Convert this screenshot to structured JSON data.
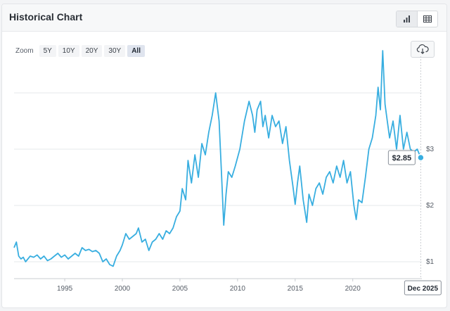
{
  "header": {
    "title": "Historical Chart",
    "toggle": [
      {
        "name": "bar-chart-icon",
        "active": true
      },
      {
        "name": "table-icon",
        "active": false
      }
    ]
  },
  "zoom": {
    "label": "Zoom",
    "options": [
      "5Y",
      "10Y",
      "20Y",
      "30Y",
      "All"
    ],
    "selected": "All"
  },
  "toolbar": {
    "download_icon": "cloud-download-icon"
  },
  "chart_data": {
    "type": "line",
    "title": "",
    "xlabel": "",
    "ylabel": "",
    "x_ticks": [
      1995,
      2000,
      2005,
      2010,
      2015,
      2020
    ],
    "y_ticks": [
      1,
      2,
      3
    ],
    "y_tick_labels": [
      "$1",
      "$2",
      "$3"
    ],
    "xlim": [
      1990.6,
      2026.0
    ],
    "ylim": [
      0.7,
      4.65
    ],
    "grid": true,
    "line_color": "#38aee0",
    "last_point": {
      "x": "Dec 2025",
      "value": 2.85,
      "label": "$2.85"
    },
    "series": [
      {
        "x": [
          1990.6,
          1990.8,
          1991.0,
          1991.2,
          1991.4,
          1991.6,
          1991.8,
          1992.0,
          1992.3,
          1992.6,
          1992.9,
          1993.2,
          1993.5,
          1993.8,
          1994.1,
          1994.4,
          1994.7,
          1995.0,
          1995.3,
          1995.6,
          1995.9,
          1996.2,
          1996.5,
          1996.8,
          1997.1,
          1997.4,
          1997.7,
          1998.0,
          1998.3,
          1998.6,
          1998.9,
          1999.2,
          1999.5,
          1999.8,
          2000.0,
          2000.3,
          2000.6,
          2000.9,
          2001.2,
          2001.4,
          2001.7,
          2002.0,
          2002.3,
          2002.6,
          2002.9,
          2003.2,
          2003.5,
          2003.8,
          2004.1,
          2004.4,
          2004.7,
          2005.0,
          2005.2,
          2005.5,
          2005.7,
          2006.0,
          2006.3,
          2006.6,
          2006.9,
          2007.2,
          2007.5,
          2007.8,
          2008.1,
          2008.4,
          2008.6,
          2008.8,
          2009.0,
          2009.2,
          2009.5,
          2009.8,
          2010.2,
          2010.6,
          2011.0,
          2011.3,
          2011.5,
          2011.7,
          2012.0,
          2012.2,
          2012.4,
          2012.7,
          2013.0,
          2013.3,
          2013.6,
          2013.9,
          2014.2,
          2014.5,
          2014.8,
          2015.0,
          2015.2,
          2015.4,
          2015.7,
          2016.0,
          2016.2,
          2016.5,
          2016.8,
          2017.1,
          2017.4,
          2017.7,
          2018.0,
          2018.3,
          2018.6,
          2018.9,
          2019.2,
          2019.5,
          2019.8,
          2020.1,
          2020.3,
          2020.5,
          2020.8,
          2021.1,
          2021.4,
          2021.7,
          2022.0,
          2022.2,
          2022.4,
          2022.6,
          2022.8,
          2023.0,
          2023.2,
          2023.5,
          2023.8,
          2024.1,
          2024.4,
          2024.7,
          2025.0,
          2025.3,
          2025.6,
          2025.9
        ],
        "values": [
          1.25,
          1.35,
          1.1,
          1.05,
          1.08,
          1.0,
          1.05,
          1.1,
          1.08,
          1.12,
          1.05,
          1.1,
          1.02,
          1.05,
          1.1,
          1.15,
          1.08,
          1.12,
          1.05,
          1.1,
          1.15,
          1.1,
          1.25,
          1.2,
          1.22,
          1.18,
          1.2,
          1.15,
          1.0,
          1.05,
          0.95,
          0.92,
          1.1,
          1.2,
          1.3,
          1.5,
          1.4,
          1.45,
          1.5,
          1.6,
          1.35,
          1.4,
          1.2,
          1.35,
          1.4,
          1.5,
          1.4,
          1.55,
          1.5,
          1.6,
          1.8,
          1.9,
          2.3,
          2.1,
          2.8,
          2.4,
          2.9,
          2.5,
          3.1,
          2.9,
          3.3,
          3.6,
          4.0,
          3.5,
          2.6,
          1.65,
          2.2,
          2.6,
          2.5,
          2.7,
          3.0,
          3.5,
          3.85,
          3.6,
          3.3,
          3.7,
          3.85,
          3.4,
          3.6,
          3.2,
          3.6,
          3.4,
          3.5,
          3.1,
          3.4,
          2.8,
          2.35,
          2.02,
          2.4,
          2.7,
          2.1,
          1.7,
          2.2,
          2.0,
          2.3,
          2.4,
          2.2,
          2.5,
          2.6,
          2.4,
          2.7,
          2.5,
          2.8,
          2.4,
          2.6,
          2.0,
          1.75,
          2.1,
          2.05,
          2.5,
          3.0,
          3.2,
          3.6,
          4.1,
          3.7,
          4.75,
          3.8,
          3.5,
          3.2,
          3.5,
          3.0,
          3.6,
          3.0,
          3.3,
          3.0,
          2.95,
          3.0,
          2.85
        ]
      }
    ]
  }
}
